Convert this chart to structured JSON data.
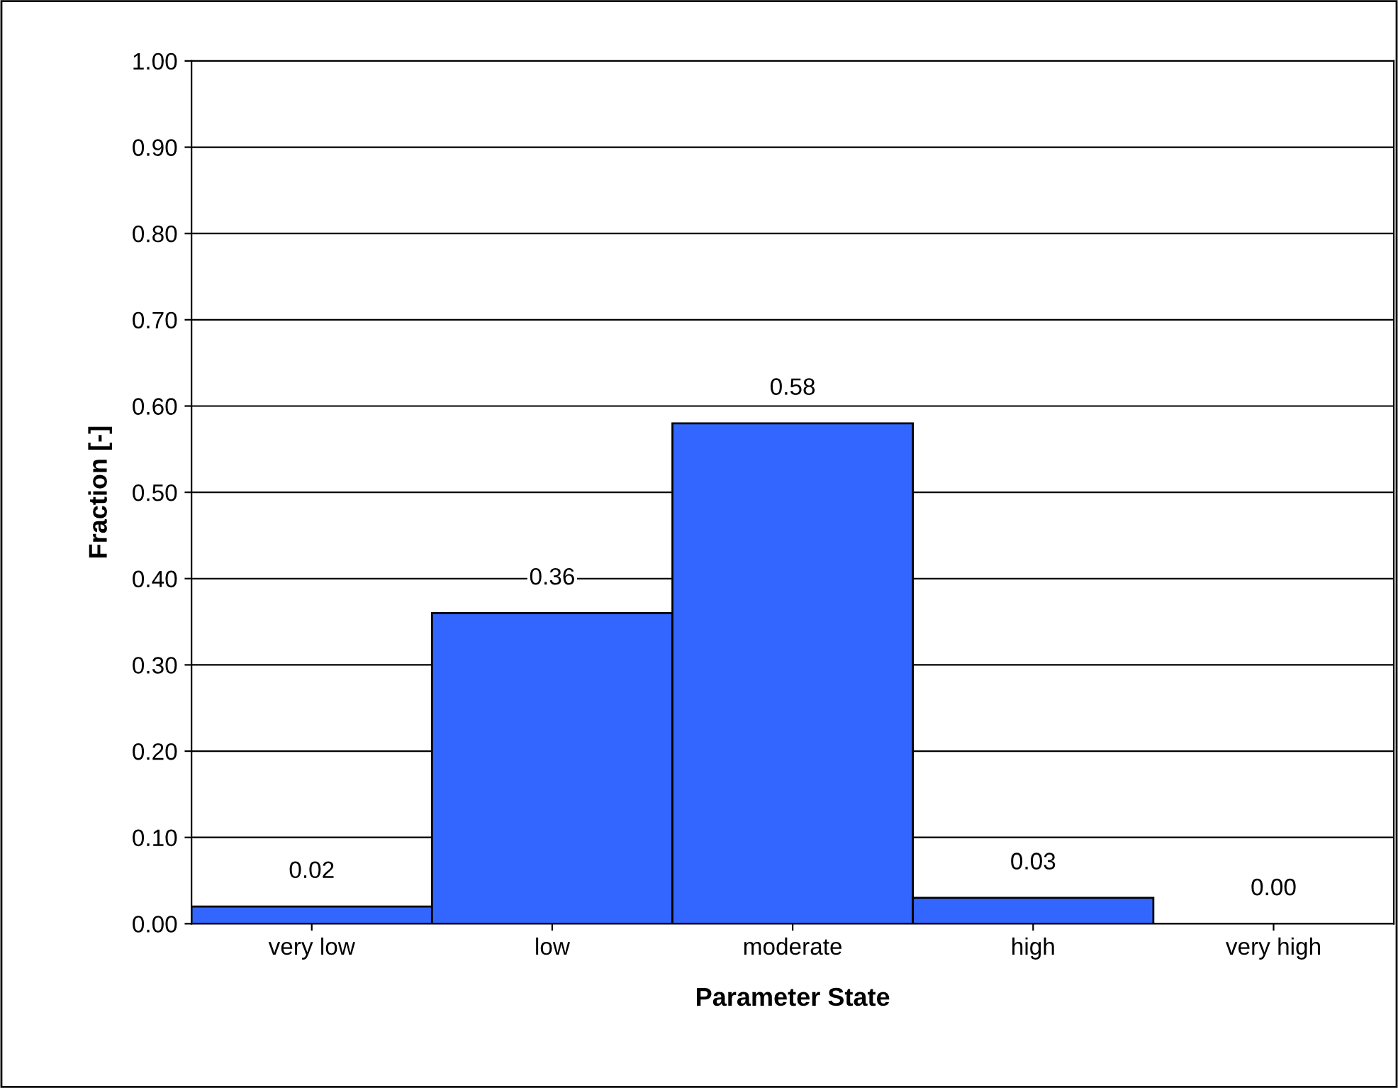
{
  "chart_data": {
    "type": "bar",
    "xlabel": "Parameter State",
    "ylabel": "Fraction [-]",
    "categories": [
      "very low",
      "low",
      "moderate",
      "high",
      "very high"
    ],
    "values": [
      0.02,
      0.36,
      0.58,
      0.03,
      0.0
    ],
    "value_labels": [
      "0.02",
      "0.36",
      "0.58",
      "0.03",
      "0.00"
    ],
    "color": "#3366ff",
    "ylim": [
      0,
      1
    ],
    "yticks": [
      {
        "value": 0,
        "label": "0.00"
      },
      {
        "value": 0.1,
        "label": "0.10"
      },
      {
        "value": 0.2,
        "label": "0.20"
      },
      {
        "value": 0.3,
        "label": "0.30"
      },
      {
        "value": 0.4,
        "label": "0.40"
      },
      {
        "value": 0.5,
        "label": "0.50"
      },
      {
        "value": 0.6,
        "label": "0.60"
      },
      {
        "value": 0.7,
        "label": "0.70"
      },
      {
        "value": 0.8,
        "label": "0.80"
      },
      {
        "value": 0.9,
        "label": "0.90"
      },
      {
        "value": 1,
        "label": "1.00"
      }
    ],
    "grid": "y",
    "legend": false
  }
}
